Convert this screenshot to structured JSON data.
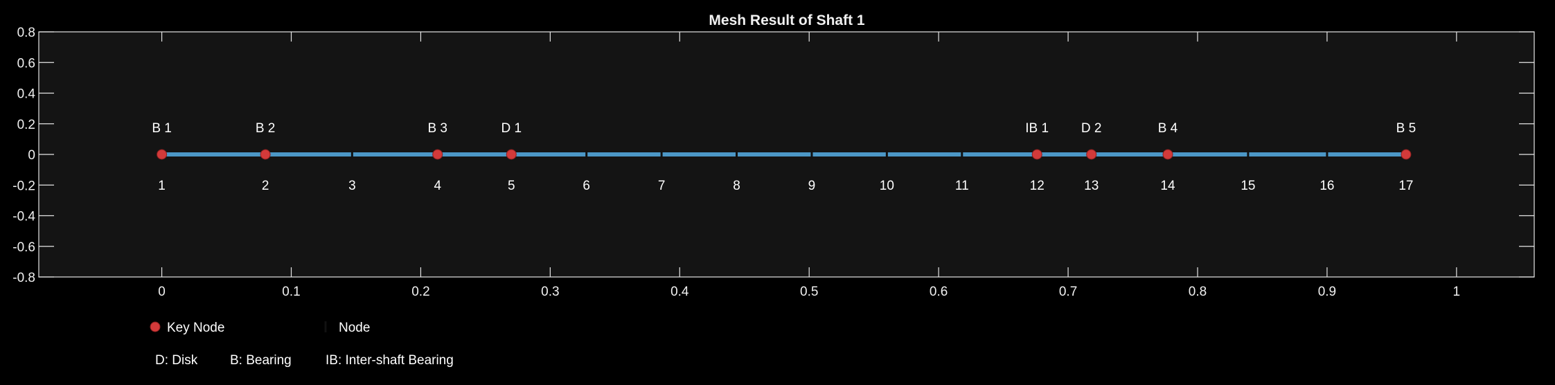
{
  "chart_data": {
    "type": "line",
    "title": "Mesh Result of Shaft 1",
    "xlabel": "",
    "ylabel": "",
    "xlim": [
      -0.095,
      1.06
    ],
    "ylim": [
      -0.8,
      0.8
    ],
    "xticks": [
      "0",
      "0.1",
      "0.2",
      "0.3",
      "0.4",
      "0.5",
      "0.6",
      "0.7",
      "0.8",
      "0.9",
      "1"
    ],
    "yticks": [
      "0.8",
      "0.6",
      "0.4",
      "0.2",
      "0",
      "-0.2",
      "-0.4",
      "-0.6",
      "-0.8"
    ],
    "grid": false,
    "colors": {
      "background": "#000000",
      "axes_background": "#141414",
      "axes_line": "#e6e6e6",
      "shaft": "#4c97c6",
      "node_marker": "#111111",
      "key_node": "#d23a3a"
    },
    "nodes": [
      {
        "id": "1",
        "x": 0.0
      },
      {
        "id": "2",
        "x": 0.08
      },
      {
        "id": "3",
        "x": 0.147
      },
      {
        "id": "4",
        "x": 0.213
      },
      {
        "id": "5",
        "x": 0.27
      },
      {
        "id": "6",
        "x": 0.328
      },
      {
        "id": "7",
        "x": 0.386
      },
      {
        "id": "8",
        "x": 0.444
      },
      {
        "id": "9",
        "x": 0.502
      },
      {
        "id": "10",
        "x": 0.56
      },
      {
        "id": "11",
        "x": 0.618
      },
      {
        "id": "12",
        "x": 0.676
      },
      {
        "id": "13",
        "x": 0.718
      },
      {
        "id": "14",
        "x": 0.777
      },
      {
        "id": "15",
        "x": 0.839
      },
      {
        "id": "16",
        "x": 0.9
      },
      {
        "id": "17",
        "x": 0.961
      }
    ],
    "key_nodes": [
      {
        "label": "B 1",
        "x": 0.0
      },
      {
        "label": "B 2",
        "x": 0.08
      },
      {
        "label": "B 3",
        "x": 0.213
      },
      {
        "label": "D 1",
        "x": 0.27
      },
      {
        "label": "IB 1",
        "x": 0.676
      },
      {
        "label": "D 2",
        "x": 0.718
      },
      {
        "label": "B 4",
        "x": 0.777
      },
      {
        "label": "B 5",
        "x": 0.961
      }
    ],
    "legend": {
      "placement": "bottom-left",
      "key_node": "Key Node",
      "node": "Node",
      "abbreviations": [
        "D: Disk",
        "B: Bearing",
        "IB: Inter-shaft Bearing"
      ]
    }
  }
}
